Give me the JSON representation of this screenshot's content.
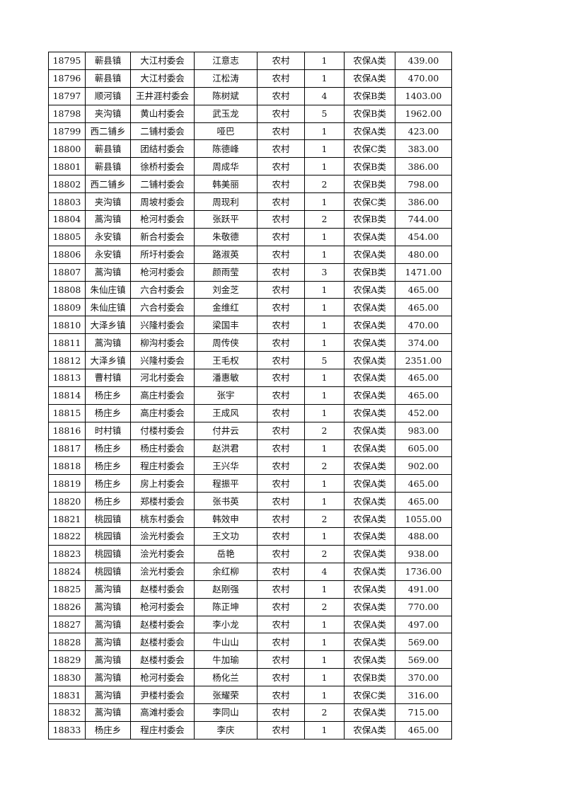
{
  "table": {
    "rows": [
      [
        "18795",
        "蕲县镇",
        "大江村委会",
        "江意志",
        "农村",
        "1",
        "农保A类",
        "439.00"
      ],
      [
        "18796",
        "蕲县镇",
        "大江村委会",
        "江松涛",
        "农村",
        "1",
        "农保A类",
        "470.00"
      ],
      [
        "18797",
        "顺河镇",
        "王井涯村委会",
        "陈树斌",
        "农村",
        "4",
        "农保B类",
        "1403.00"
      ],
      [
        "18798",
        "夹沟镇",
        "黄山村委会",
        "武玉龙",
        "农村",
        "5",
        "农保B类",
        "1962.00"
      ],
      [
        "18799",
        "西二铺乡",
        "二铺村委会",
        "哑巴",
        "农村",
        "1",
        "农保A类",
        "423.00"
      ],
      [
        "18800",
        "蕲县镇",
        "团结村委会",
        "陈德峰",
        "农村",
        "1",
        "农保C类",
        "383.00"
      ],
      [
        "18801",
        "蕲县镇",
        "徐桥村委会",
        "周成华",
        "农村",
        "1",
        "农保B类",
        "386.00"
      ],
      [
        "18802",
        "西二铺乡",
        "二铺村委会",
        "韩美丽",
        "农村",
        "2",
        "农保B类",
        "798.00"
      ],
      [
        "18803",
        "夹沟镇",
        "周坡村委会",
        "周现利",
        "农村",
        "1",
        "农保C类",
        "386.00"
      ],
      [
        "18804",
        "蒿沟镇",
        "枪河村委会",
        "张跃平",
        "农村",
        "2",
        "农保B类",
        "744.00"
      ],
      [
        "18805",
        "永安镇",
        "新合村委会",
        "朱敬德",
        "农村",
        "1",
        "农保A类",
        "454.00"
      ],
      [
        "18806",
        "永安镇",
        "所圩村委会",
        "路淑英",
        "农村",
        "1",
        "农保A类",
        "480.00"
      ],
      [
        "18807",
        "蒿沟镇",
        "枪河村委会",
        "颜雨莹",
        "农村",
        "3",
        "农保B类",
        "1471.00"
      ],
      [
        "18808",
        "朱仙庄镇",
        "六合村委会",
        "刘金芝",
        "农村",
        "1",
        "农保A类",
        "465.00"
      ],
      [
        "18809",
        "朱仙庄镇",
        "六合村委会",
        "金维红",
        "农村",
        "1",
        "农保A类",
        "465.00"
      ],
      [
        "18810",
        "大泽乡镇",
        "兴隆村委会",
        "梁国丰",
        "农村",
        "1",
        "农保A类",
        "470.00"
      ],
      [
        "18811",
        "蒿沟镇",
        "柳沟村委会",
        "周传侠",
        "农村",
        "1",
        "农保A类",
        "374.00"
      ],
      [
        "18812",
        "大泽乡镇",
        "兴隆村委会",
        "王毛权",
        "农村",
        "5",
        "农保A类",
        "2351.00"
      ],
      [
        "18813",
        "曹村镇",
        "河北村委会",
        "潘惠敏",
        "农村",
        "1",
        "农保A类",
        "465.00"
      ],
      [
        "18814",
        "杨庄乡",
        "高庄村委会",
        "张宇",
        "农村",
        "1",
        "农保A类",
        "465.00"
      ],
      [
        "18815",
        "杨庄乡",
        "高庄村委会",
        "王成风",
        "农村",
        "1",
        "农保A类",
        "452.00"
      ],
      [
        "18816",
        "时村镇",
        "付楼村委会",
        "付井云",
        "农村",
        "2",
        "农保A类",
        "983.00"
      ],
      [
        "18817",
        "杨庄乡",
        "杨庄村委会",
        "赵洪君",
        "农村",
        "1",
        "农保A类",
        "605.00"
      ],
      [
        "18818",
        "杨庄乡",
        "程庄村委会",
        "王兴华",
        "农村",
        "2",
        "农保A类",
        "902.00"
      ],
      [
        "18819",
        "杨庄乡",
        "房上村委会",
        "程振平",
        "农村",
        "1",
        "农保A类",
        "465.00"
      ],
      [
        "18820",
        "杨庄乡",
        "郑楼村委会",
        "张书英",
        "农村",
        "1",
        "农保A类",
        "465.00"
      ],
      [
        "18821",
        "桃园镇",
        "桃东村委会",
        "韩效申",
        "农村",
        "2",
        "农保A类",
        "1055.00"
      ],
      [
        "18822",
        "桃园镇",
        "浍光村委会",
        "王文功",
        "农村",
        "1",
        "农保A类",
        "488.00"
      ],
      [
        "18823",
        "桃园镇",
        "浍光村委会",
        "岳艳",
        "农村",
        "2",
        "农保A类",
        "938.00"
      ],
      [
        "18824",
        "桃园镇",
        "浍光村委会",
        "余红柳",
        "农村",
        "4",
        "农保A类",
        "1736.00"
      ],
      [
        "18825",
        "蒿沟镇",
        "赵楼村委会",
        "赵刚强",
        "农村",
        "1",
        "农保A类",
        "491.00"
      ],
      [
        "18826",
        "蒿沟镇",
        "枪河村委会",
        "陈正坤",
        "农村",
        "2",
        "农保A类",
        "770.00"
      ],
      [
        "18827",
        "蒿沟镇",
        "赵楼村委会",
        "李小龙",
        "农村",
        "1",
        "农保A类",
        "497.00"
      ],
      [
        "18828",
        "蒿沟镇",
        "赵楼村委会",
        "牛山山",
        "农村",
        "1",
        "农保A类",
        "569.00"
      ],
      [
        "18829",
        "蒿沟镇",
        "赵楼村委会",
        "牛加瑜",
        "农村",
        "1",
        "农保A类",
        "569.00"
      ],
      [
        "18830",
        "蒿沟镇",
        "枪河村委会",
        "杨化兰",
        "农村",
        "1",
        "农保B类",
        "370.00"
      ],
      [
        "18831",
        "蒿沟镇",
        "尹楼村委会",
        "张耀荣",
        "农村",
        "1",
        "农保C类",
        "316.00"
      ],
      [
        "18832",
        "蒿沟镇",
        "高滩村委会",
        "李同山",
        "农村",
        "2",
        "农保A类",
        "715.00"
      ],
      [
        "18833",
        "杨庄乡",
        "程庄村委会",
        "李庆",
        "农村",
        "1",
        "农保A类",
        "465.00"
      ]
    ]
  }
}
